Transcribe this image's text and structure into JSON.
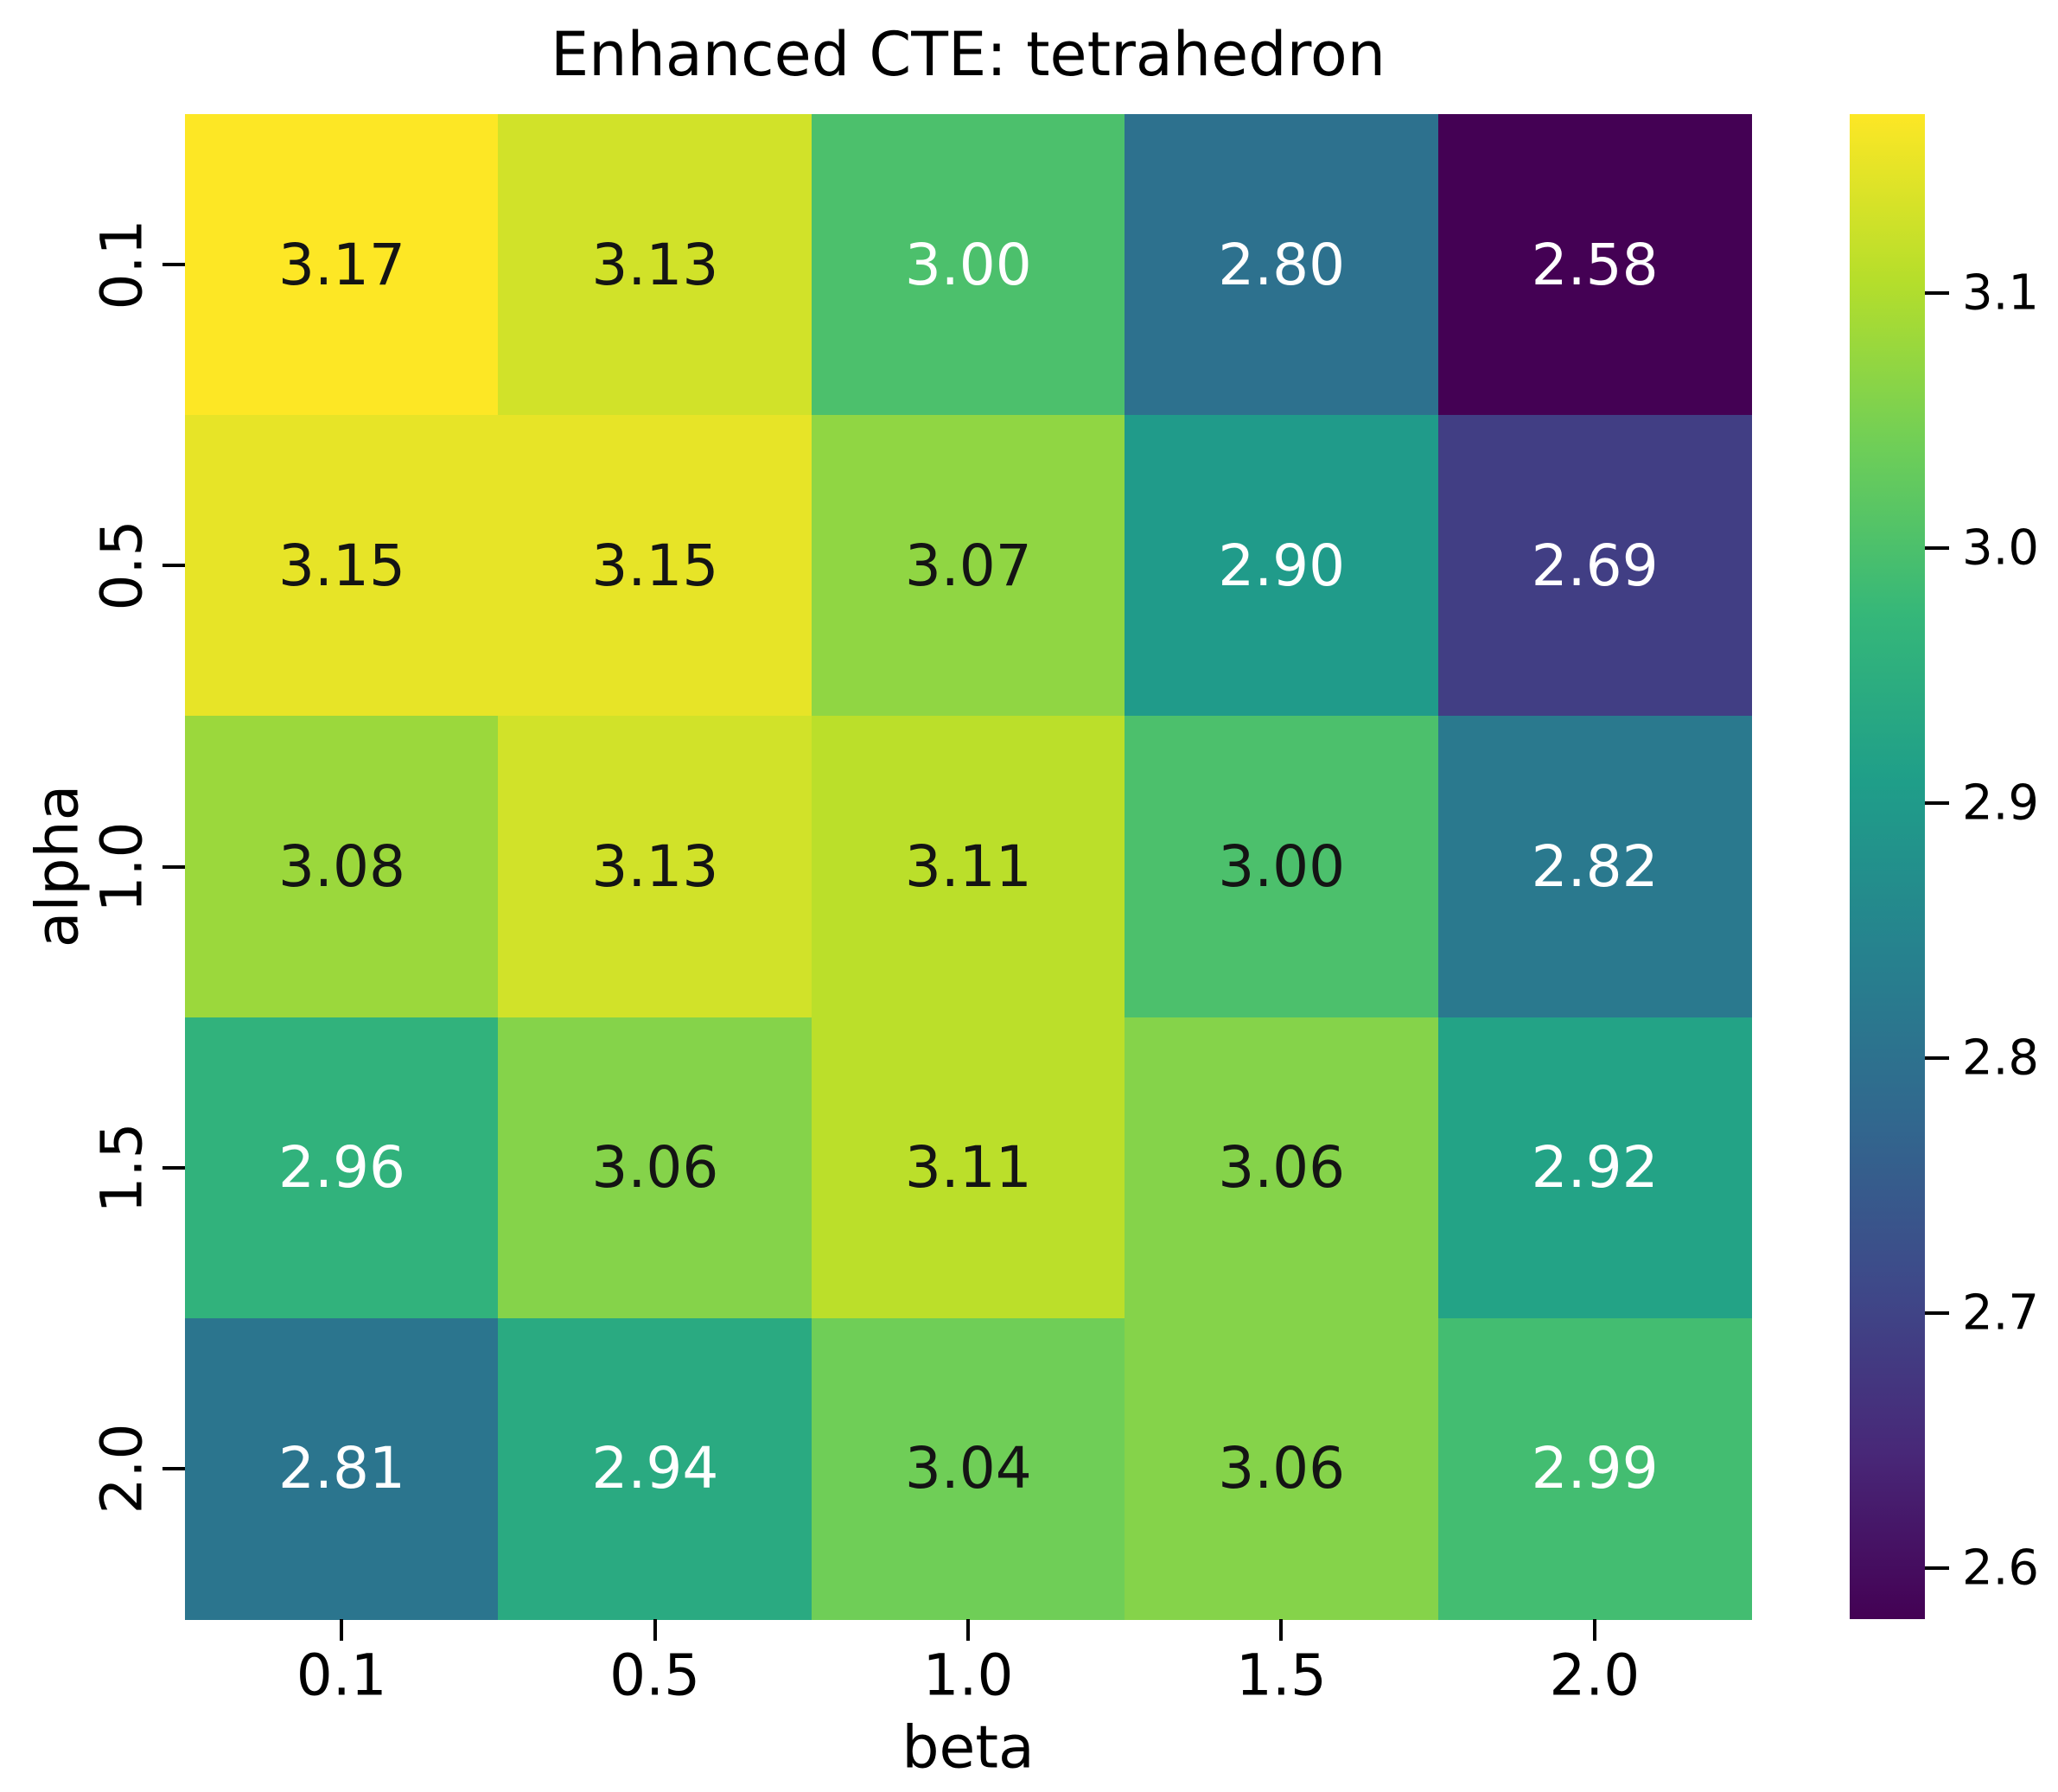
{
  "title": "Enhanced CTE: tetrahedron",
  "chart_data": {
    "type": "heatmap",
    "title": "Enhanced CTE: tetrahedron",
    "xlabel": "beta",
    "ylabel": "alpha",
    "x_categories": [
      "0.1",
      "0.5",
      "1.0",
      "1.5",
      "2.0"
    ],
    "y_categories": [
      "0.1",
      "0.5",
      "1.0",
      "1.5",
      "2.0"
    ],
    "values": [
      [
        3.17,
        3.13,
        3.0,
        2.8,
        2.58
      ],
      [
        3.15,
        3.15,
        3.07,
        2.9,
        2.69
      ],
      [
        3.08,
        3.13,
        3.11,
        3.0,
        2.82
      ],
      [
        2.96,
        3.06,
        3.11,
        3.06,
        2.92
      ],
      [
        2.81,
        2.94,
        3.04,
        3.06,
        2.99
      ]
    ],
    "cell_labels": [
      [
        "3.17",
        "3.13",
        "3.00",
        "2.80",
        "2.58"
      ],
      [
        "3.15",
        "3.15",
        "3.07",
        "2.90",
        "2.69"
      ],
      [
        "3.08",
        "3.13",
        "3.11",
        "3.00",
        "2.82"
      ],
      [
        "2.96",
        "3.06",
        "3.11",
        "3.06",
        "2.92"
      ],
      [
        "2.81",
        "2.94",
        "3.04",
        "3.06",
        "2.99"
      ]
    ],
    "annot_light_text": [
      [
        false,
        false,
        true,
        true,
        true
      ],
      [
        false,
        false,
        false,
        true,
        true
      ],
      [
        false,
        false,
        false,
        false,
        true
      ],
      [
        true,
        false,
        false,
        false,
        true
      ],
      [
        true,
        true,
        false,
        false,
        true
      ]
    ],
    "colormap": "viridis",
    "vmin": 2.58,
    "vmax": 3.17,
    "colorbar_ticks": [
      "3.1",
      "3.0",
      "2.9",
      "2.8",
      "2.7",
      "2.6"
    ],
    "colorbar_tick_values": [
      3.1,
      3.0,
      2.9,
      2.8,
      2.7,
      2.6
    ],
    "grid": false,
    "legend_position": "right-colorbar"
  },
  "colors": {
    "annot_dark": "#141414",
    "annot_light": "#ffffff",
    "axis_text": "#000000",
    "background": "#ffffff",
    "viridis_min": "#440154",
    "viridis_max": "#fde725"
  }
}
